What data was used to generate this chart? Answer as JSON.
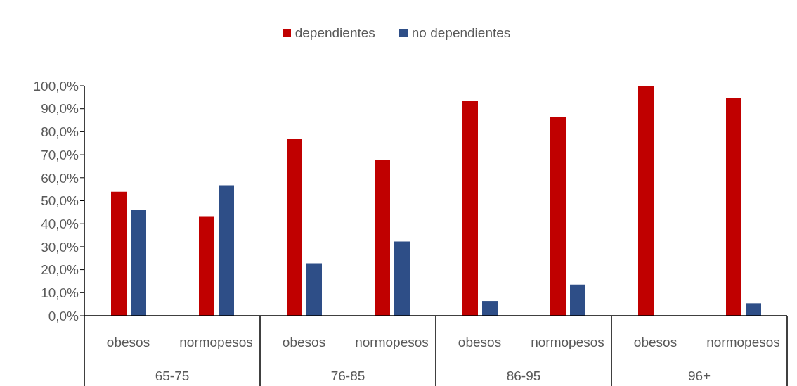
{
  "chart_data": {
    "type": "bar",
    "categories": [
      "obesos",
      "normopesos",
      "obesos",
      "normopesos",
      "obesos",
      "normopesos",
      "obesos",
      "normopesos"
    ],
    "annotations": [
      "65-75",
      "76-85",
      "86-95",
      "96+"
    ],
    "series": [
      {
        "name": "dependientes",
        "color": "#c00000",
        "values": [
          53.9,
          43.3,
          77.1,
          67.7,
          93.5,
          86.4,
          100,
          94.5
        ]
      },
      {
        "name": "no dependientes",
        "color": "#2e4e87",
        "values": [
          46.1,
          56.7,
          22.8,
          32.3,
          6.4,
          13.5,
          0,
          5.4
        ]
      }
    ],
    "ylim": [
      0,
      100
    ],
    "yticks": [
      {
        "value": 0,
        "label": "0,0%"
      },
      {
        "value": 10,
        "label": "10,0%"
      },
      {
        "value": 20,
        "label": "20,0%"
      },
      {
        "value": 30,
        "label": "30,0%"
      },
      {
        "value": 40,
        "label": "40,0%"
      },
      {
        "value": 50,
        "label": "50,0%"
      },
      {
        "value": 60,
        "label": "60,0%"
      },
      {
        "value": 70,
        "label": "70,0%"
      },
      {
        "value": 80,
        "label": "80,0%"
      },
      {
        "value": 90,
        "label": "90,0%"
      },
      {
        "value": 100,
        "label": "100,0%"
      }
    ],
    "legend": "top",
    "grid": false
  }
}
